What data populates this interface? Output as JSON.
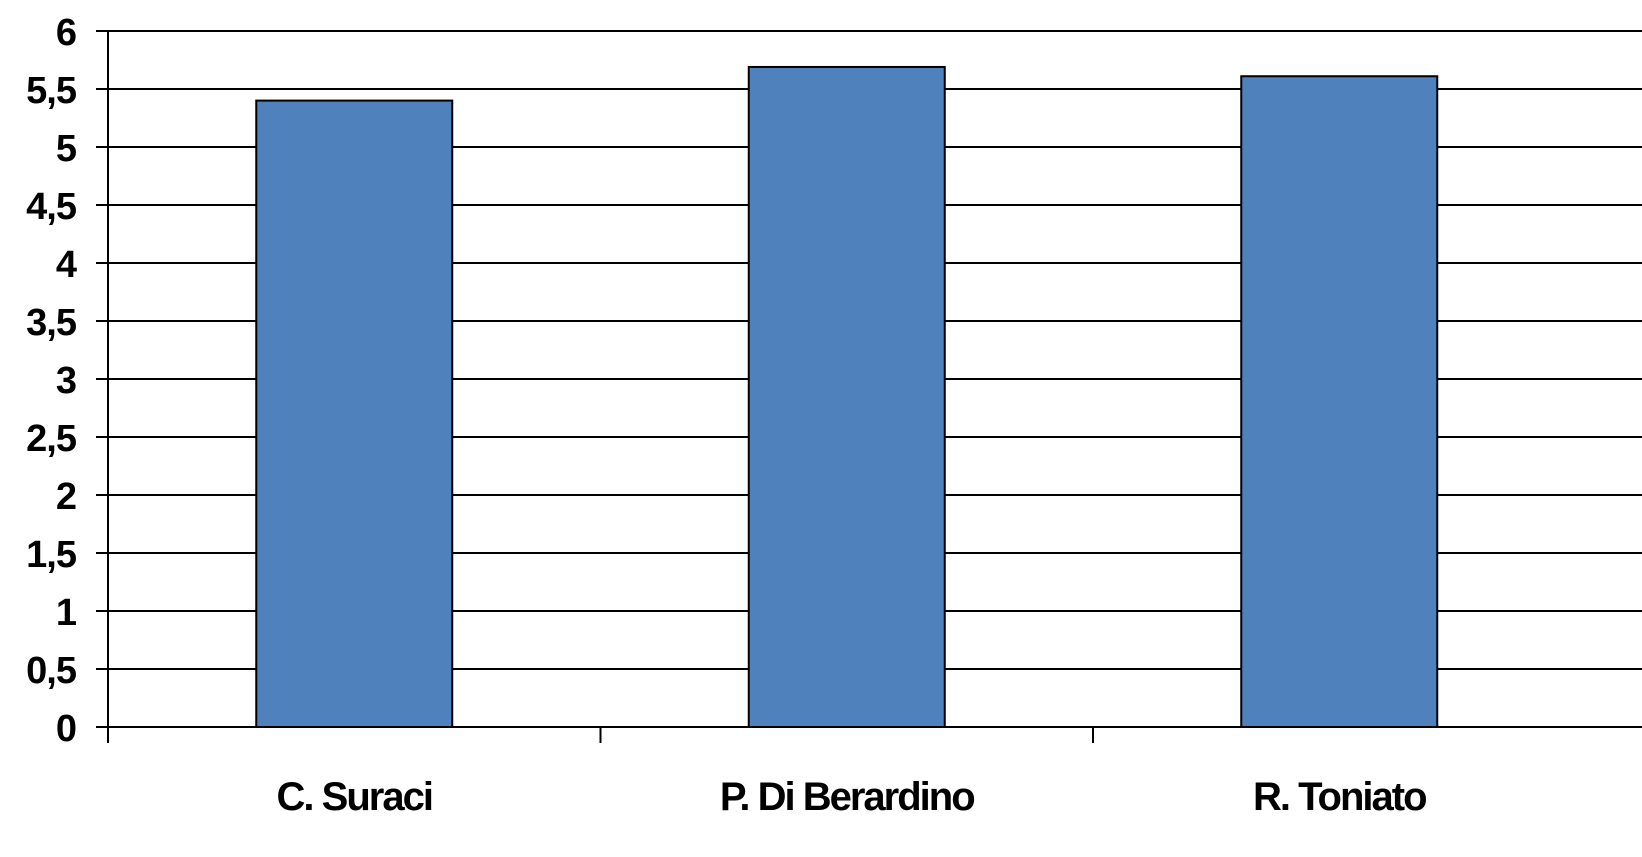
{
  "chart_data": {
    "type": "bar",
    "title": "",
    "xlabel": "",
    "ylabel": "",
    "categories": [
      "C. Suraci",
      "P. Di Berardino",
      "R. Toniato"
    ],
    "values": [
      5.4,
      5.69,
      5.61
    ],
    "ylim": [
      0,
      6
    ],
    "ytick_step": 0.5,
    "y_tick_labels": [
      "0",
      "0,5",
      "1",
      "1,5",
      "2",
      "2,5",
      "3",
      "3,5",
      "4",
      "4,5",
      "5",
      "5,5",
      "6"
    ],
    "grid": true,
    "legend": "none",
    "bar_color": "#4F81BD",
    "bar_edge_color": "#000000"
  }
}
